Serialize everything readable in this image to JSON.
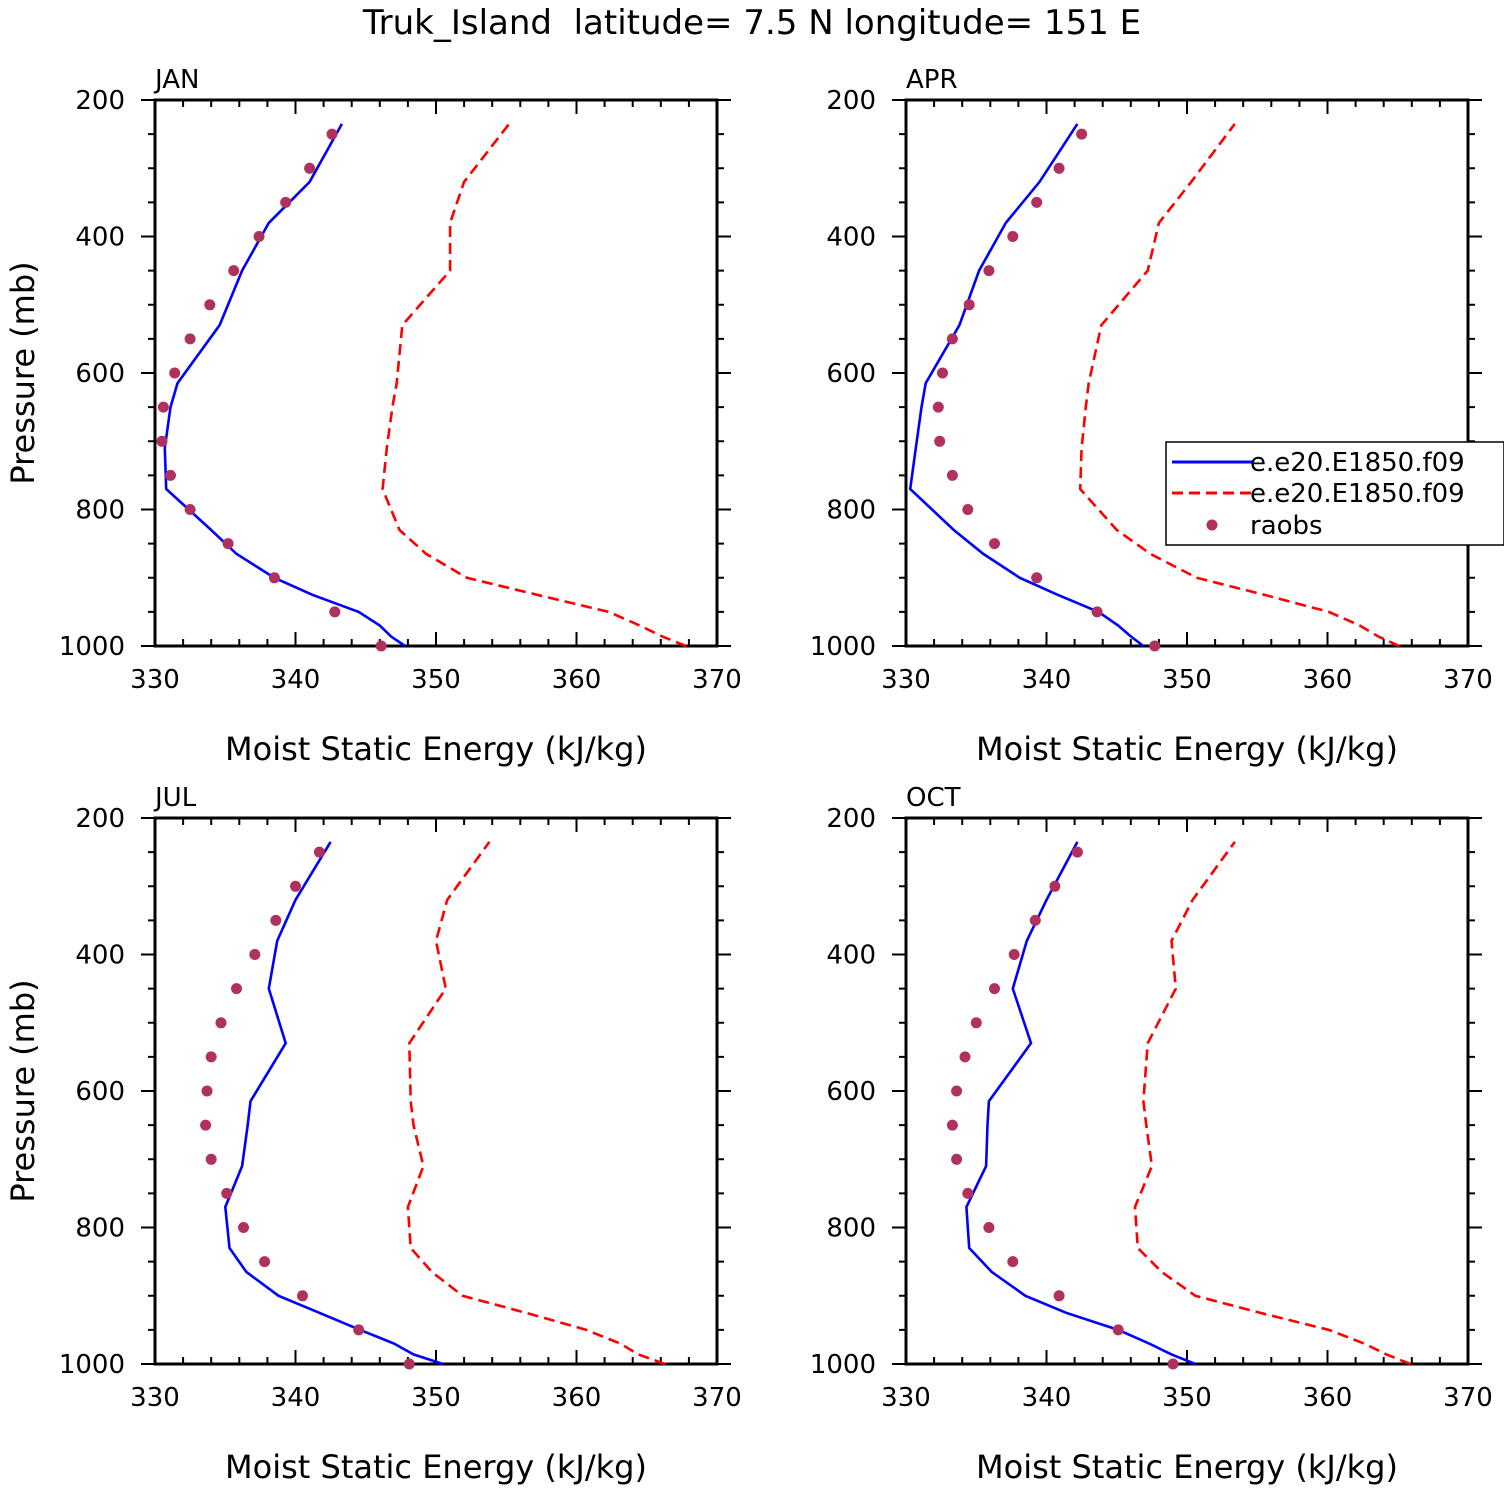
{
  "chart_data": {
    "title": "Truk_Island  latitude= 7.5 N longitude= 151 E",
    "type": "line",
    "xlabel": "Moist Static Energy (kJ/kg)",
    "ylabel": "Pressure (mb)",
    "xlim": [
      330,
      370
    ],
    "ylim": [
      200,
      1000
    ],
    "y_inverted": true,
    "xticks": [
      "330",
      "340",
      "350",
      "360",
      "370"
    ],
    "yticks": [
      "200",
      "400",
      "600",
      "800",
      "1000"
    ],
    "legend": {
      "placement": "right of APR panel",
      "entries": [
        "e.e20.E1850.f09",
        "e.e20.E1850.f09",
        "raobs"
      ]
    },
    "colors": {
      "model1": "#0000ff",
      "model2": "#ff0000",
      "raobs": "#b03060"
    },
    "pressure_levels": [
      1000,
      950,
      900,
      850,
      800,
      750,
      700,
      650,
      600,
      550,
      500,
      450,
      400,
      350,
      300,
      250
    ],
    "model_pressure_levels": [
      1000,
      986,
      970,
      950,
      925,
      900,
      865,
      830,
      770,
      710,
      650,
      615,
      530,
      450,
      380,
      320,
      235
    ],
    "panels": [
      {
        "label": "JAN",
        "model1": [
          347.8,
          346.8,
          346.0,
          344.5,
          341.2,
          338.5,
          335.8,
          334.0,
          330.8,
          330.7,
          331.1,
          331.6,
          334.6,
          336.2,
          338.1,
          341.0,
          343.3
        ],
        "model2": [
          367.8,
          366.1,
          364.5,
          362.3,
          357.2,
          352.2,
          349.3,
          347.4,
          346.2,
          346.5,
          346.9,
          347.2,
          347.6,
          351.0,
          351.0,
          352.0,
          355.2
        ],
        "raobs": [
          346.1,
          342.8,
          338.5,
          335.2,
          332.5,
          331.1,
          330.5,
          330.6,
          331.4,
          332.5,
          333.9,
          335.6,
          337.4,
          339.3,
          341.0,
          342.6
        ]
      },
      {
        "label": "APR",
        "model1": [
          346.9,
          346.0,
          345.1,
          343.7,
          340.8,
          338.1,
          335.5,
          333.4,
          330.3,
          330.7,
          331.1,
          331.4,
          333.8,
          335.2,
          337.1,
          339.5,
          342.2
        ],
        "model2": [
          365.1,
          363.6,
          362.3,
          360.1,
          355.5,
          350.7,
          347.4,
          345.0,
          342.4,
          342.5,
          342.8,
          343.0,
          343.9,
          347.2,
          348.0,
          350.3,
          353.4
        ],
        "raobs": [
          347.7,
          343.6,
          339.3,
          336.3,
          334.4,
          333.3,
          332.4,
          332.3,
          332.6,
          333.3,
          334.5,
          335.9,
          337.6,
          339.3,
          340.9,
          342.5
        ]
      },
      {
        "label": "JUL",
        "model1": [
          350.5,
          348.4,
          347.0,
          344.6,
          341.7,
          338.8,
          336.5,
          335.3,
          335.0,
          336.2,
          336.6,
          336.8,
          339.3,
          338.1,
          338.7,
          340.0,
          342.5
        ],
        "model2": [
          366.3,
          364.4,
          363.1,
          360.7,
          356.4,
          351.9,
          349.7,
          348.2,
          348.0,
          349.1,
          348.4,
          348.2,
          348.1,
          350.7,
          350.0,
          350.8,
          353.8
        ],
        "raobs": [
          348.1,
          344.5,
          340.5,
          337.8,
          336.3,
          335.1,
          334.0,
          333.6,
          333.7,
          334.0,
          334.7,
          335.8,
          337.1,
          338.6,
          340.0,
          341.7
        ]
      },
      {
        "label": "OCT",
        "model1": [
          350.6,
          348.9,
          347.3,
          345.1,
          341.4,
          338.5,
          336.1,
          334.5,
          334.3,
          335.7,
          335.8,
          335.9,
          338.9,
          337.6,
          338.6,
          340.0,
          342.2
        ],
        "model2": [
          365.9,
          364.2,
          362.6,
          360.1,
          355.2,
          350.6,
          348.2,
          346.5,
          346.3,
          347.5,
          347.1,
          346.9,
          347.2,
          349.2,
          348.9,
          350.4,
          353.4
        ],
        "raobs": [
          349.0,
          345.1,
          340.9,
          337.6,
          335.9,
          334.4,
          333.6,
          333.3,
          333.6,
          334.2,
          335.0,
          336.3,
          337.7,
          339.2,
          340.6,
          342.2
        ]
      }
    ]
  }
}
